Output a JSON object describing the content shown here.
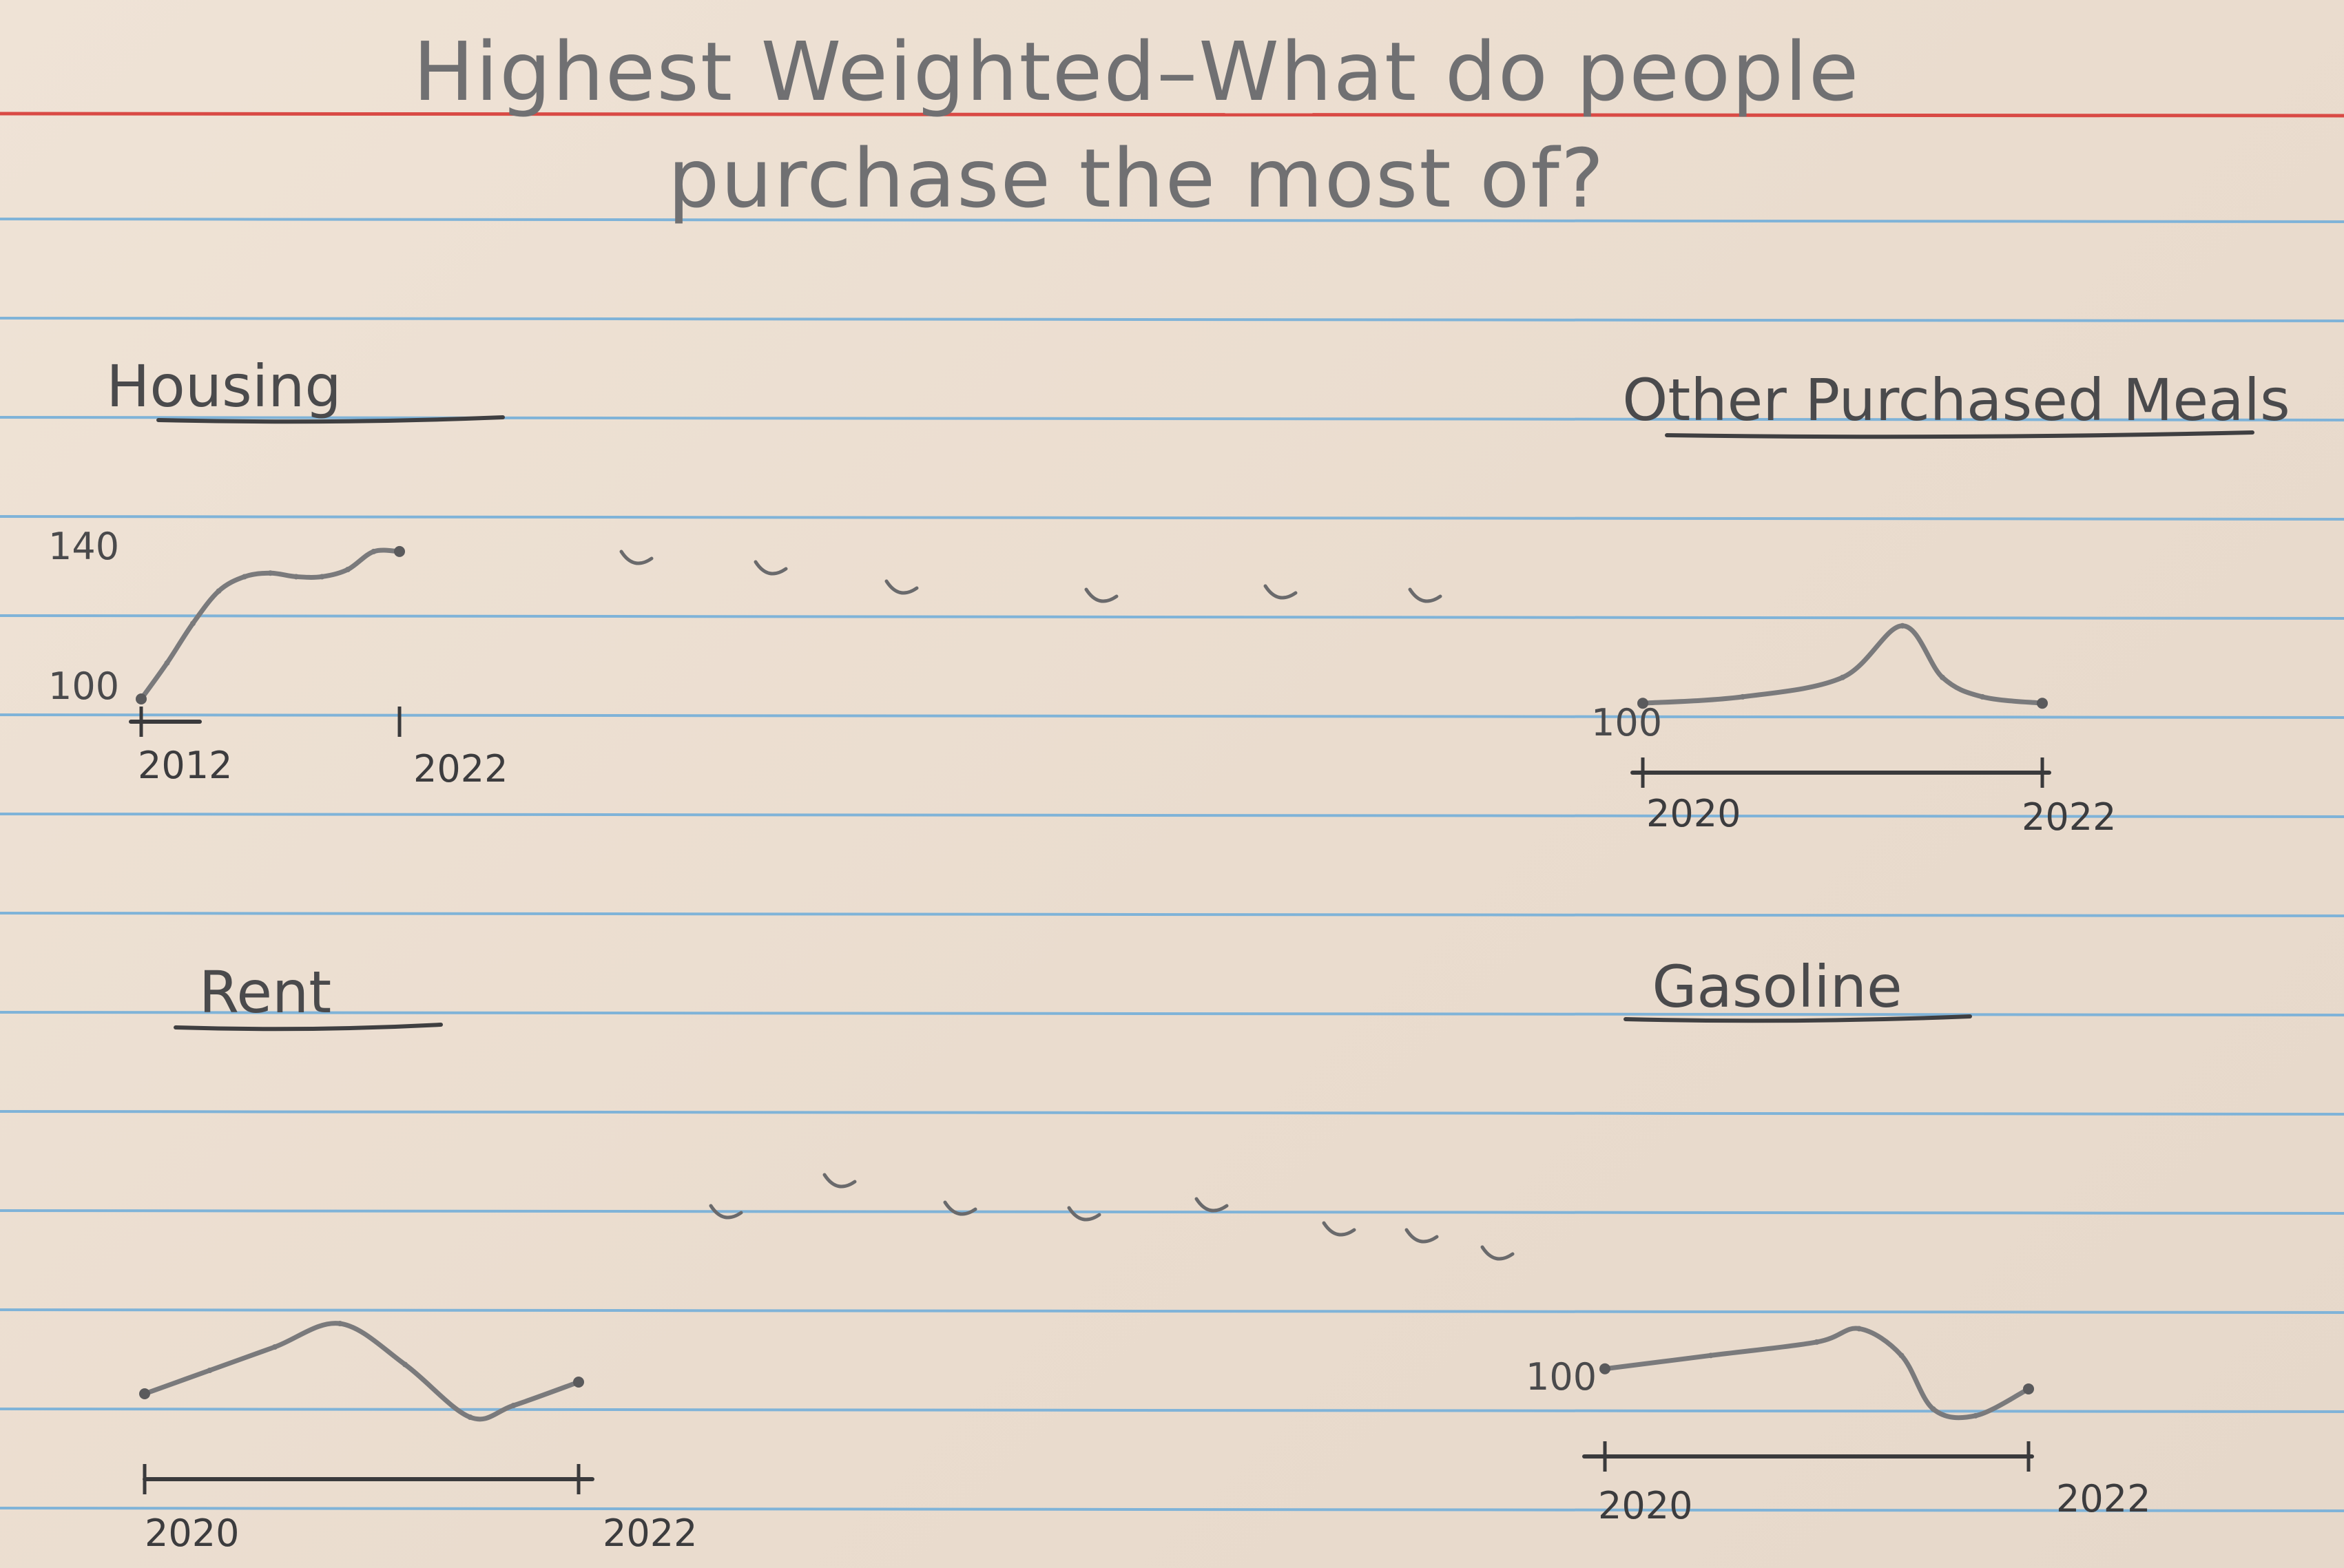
{
  "title": {
    "line1": "Highest Weighted–What do people",
    "line2": "purchase the most of?"
  },
  "colors": {
    "paper": "#ecdfd2",
    "rule_blue": "#7fb3d8",
    "rule_red": "#d94a45",
    "pencil": "#6a6a6c"
  },
  "chart_data": [
    {
      "type": "line",
      "title": "Housing",
      "x": [
        2012,
        2013,
        2014,
        2015,
        2016,
        2017,
        2018,
        2019,
        2020,
        2021,
        2022
      ],
      "series": [
        {
          "values": [
            100,
            110,
            121,
            130,
            134,
            135,
            134,
            134,
            136,
            141,
            141
          ]
        }
      ],
      "xticks": [
        "2012",
        "2022"
      ],
      "yticks": [
        "100",
        "140"
      ],
      "xlim": [
        2012,
        2022
      ],
      "ylim": [
        100,
        145
      ]
    },
    {
      "type": "line",
      "title": "Other Purchased Meals",
      "x": [
        2020.0,
        2020.5,
        2021.0,
        2021.3,
        2021.5,
        2021.7,
        2022.0
      ],
      "series": [
        {
          "values": [
            100,
            101,
            104,
            112,
            104,
            101,
            100
          ]
        }
      ],
      "xticks": [
        "2020",
        "2022"
      ],
      "yticks": [
        "100"
      ],
      "xlim": [
        2020,
        2022
      ],
      "ylim": [
        98,
        114
      ]
    },
    {
      "type": "line",
      "title": "Rent",
      "x": [
        2020.0,
        2020.3,
        2020.6,
        2020.9,
        2021.2,
        2021.5,
        2021.7,
        2022.0
      ],
      "series": [
        {
          "values": [
            100,
            104,
            108,
            112,
            105,
            96,
            98,
            102
          ]
        }
      ],
      "xticks": [
        "2020",
        "2022"
      ],
      "yticks": [],
      "xlim": [
        2020,
        2022
      ],
      "ylim": [
        94,
        114
      ]
    },
    {
      "type": "line",
      "title": "Gasoline",
      "x": [
        2020.0,
        2020.5,
        2021.0,
        2021.2,
        2021.4,
        2021.55,
        2021.75,
        2022.0
      ],
      "series": [
        {
          "values": [
            100,
            102,
            104,
            106,
            102,
            94,
            93,
            97
          ]
        }
      ],
      "xticks": [
        "2020",
        "2022"
      ],
      "yticks": [
        "100"
      ],
      "xlim": [
        2020,
        2022
      ],
      "ylim": [
        90,
        108
      ]
    }
  ]
}
